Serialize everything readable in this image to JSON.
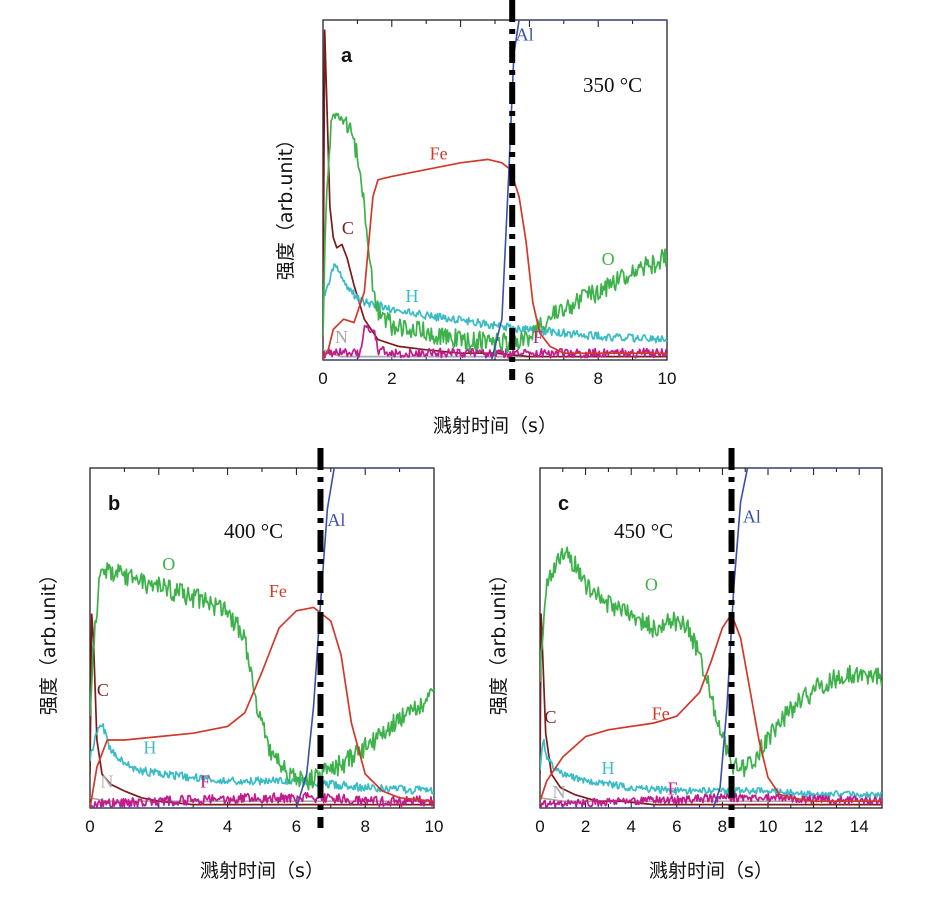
{
  "chart_data": [
    {
      "type": "line",
      "panel": "a",
      "annotation": "350 °C",
      "xlabel": "溅射时间（s）",
      "ylabel": "强度（arb.unit）",
      "xlim": [
        0,
        10
      ],
      "ylim": [
        0,
        1
      ],
      "xticks": [
        0,
        2,
        4,
        6,
        8,
        10
      ],
      "xtick_labels": [
        "0",
        "2",
        "4",
        "6",
        "8",
        "10"
      ],
      "interface_x": 5.5,
      "series": [
        {
          "name": "Al",
          "color": "#3a4fa8",
          "x": [
            0,
            4.9,
            5.2,
            5.4,
            5.55,
            5.7,
            10
          ],
          "y": [
            0,
            0,
            0.12,
            0.55,
            0.9,
            1.0,
            1.0
          ]
        },
        {
          "name": "Fe",
          "color": "#d1392b",
          "x": [
            0,
            0.15,
            0.3,
            0.6,
            0.9,
            1.2,
            1.45,
            1.6,
            2.0,
            3.0,
            4.0,
            4.8,
            5.2,
            5.45,
            5.7,
            5.9,
            6.1,
            6.3,
            6.6,
            7.0,
            8.0,
            10
          ],
          "y": [
            0,
            0.03,
            0.09,
            0.12,
            0.11,
            0.2,
            0.48,
            0.53,
            0.54,
            0.56,
            0.58,
            0.59,
            0.58,
            0.56,
            0.48,
            0.35,
            0.17,
            0.08,
            0.04,
            0.02,
            0.02,
            0.02
          ]
        },
        {
          "name": "O",
          "color": "#3db24a",
          "x": [
            0,
            0.1,
            0.25,
            0.45,
            0.8,
            1.0,
            1.2,
            1.4,
            1.6,
            2.0,
            3.0,
            4.0,
            5.0,
            5.5,
            6.0,
            6.5,
            7.0,
            8.0,
            9.0,
            10
          ],
          "y": [
            0.1,
            0.48,
            0.72,
            0.74,
            0.67,
            0.6,
            0.45,
            0.25,
            0.14,
            0.1,
            0.08,
            0.06,
            0.05,
            0.05,
            0.07,
            0.12,
            0.15,
            0.2,
            0.26,
            0.3
          ],
          "noise": 0.03
        },
        {
          "name": "H",
          "color": "#3bbcc5",
          "x": [
            0,
            0.15,
            0.35,
            0.5,
            0.8,
            1.2,
            2.0,
            3.0,
            4.0,
            5.0,
            6.0,
            7.0,
            8.0,
            10
          ],
          "y": [
            0.18,
            0.22,
            0.28,
            0.25,
            0.2,
            0.17,
            0.15,
            0.13,
            0.12,
            0.1,
            0.09,
            0.08,
            0.07,
            0.06
          ],
          "noise": 0.012
        },
        {
          "name": "C",
          "color": "#7a1c1c",
          "x": [
            0,
            0.05,
            0.1,
            0.2,
            0.3,
            0.4,
            0.55,
            0.7,
            0.9,
            1.2,
            1.6,
            2.2,
            3.0,
            4.0,
            5.0,
            6.0,
            10
          ],
          "y": [
            0.1,
            0.97,
            0.8,
            0.45,
            0.36,
            0.33,
            0.34,
            0.3,
            0.22,
            0.12,
            0.06,
            0.04,
            0.03,
            0.02,
            0.02,
            0.01,
            0.01
          ]
        },
        {
          "name": "F",
          "color": "#c21c8c",
          "x": [
            0,
            1.1,
            1.2,
            1.5,
            1.6,
            2.0,
            10
          ],
          "y": [
            0.02,
            0.02,
            0.09,
            0.09,
            0.03,
            0.02,
            0.02
          ],
          "noise": 0.014
        },
        {
          "name": "N",
          "color": "#a8a8a8",
          "x": [
            0,
            0.5,
            10
          ],
          "y": [
            0.03,
            0.01,
            0.01
          ]
        }
      ],
      "series_labels": [
        {
          "name": "Al",
          "x": 5.6,
          "y": 0.94
        },
        {
          "name": "Fe",
          "x": 3.1,
          "y": 0.59
        },
        {
          "name": "O",
          "x": 8.1,
          "y": 0.28
        },
        {
          "name": "H",
          "x": 2.4,
          "y": 0.17
        },
        {
          "name": "C",
          "x": 0.55,
          "y": 0.37
        },
        {
          "name": "F",
          "x": 6.1,
          "y": 0.05
        },
        {
          "name": "N",
          "x": 0.35,
          "y": 0.05
        }
      ]
    },
    {
      "type": "line",
      "panel": "b",
      "annotation": "400 °C",
      "xlabel": "溅射时间（s）",
      "ylabel": "强度（arb.unit）",
      "xlim": [
        0,
        10
      ],
      "ylim": [
        0,
        1
      ],
      "xticks": [
        0,
        2,
        4,
        6,
        8,
        10
      ],
      "xtick_labels": [
        "0",
        "2",
        "4",
        "6",
        "8",
        "10"
      ],
      "interface_x": 6.7,
      "series": [
        {
          "name": "Al",
          "color": "#3a4fa8",
          "x": [
            0,
            6.0,
            6.3,
            6.5,
            6.7,
            6.9,
            7.1,
            10
          ],
          "y": [
            0,
            0,
            0.1,
            0.3,
            0.6,
            0.88,
            1.0,
            1.0
          ]
        },
        {
          "name": "Fe",
          "color": "#d1392b",
          "x": [
            0,
            0.2,
            0.5,
            1.0,
            2.0,
            3.0,
            4.0,
            4.5,
            5.0,
            5.5,
            6.0,
            6.5,
            7.0,
            7.3,
            7.6,
            8.0,
            8.5,
            9.0,
            10
          ],
          "y": [
            0,
            0.12,
            0.2,
            0.2,
            0.21,
            0.22,
            0.24,
            0.28,
            0.4,
            0.53,
            0.58,
            0.59,
            0.55,
            0.45,
            0.25,
            0.1,
            0.05,
            0.03,
            0.02
          ]
        },
        {
          "name": "O",
          "color": "#3db24a",
          "x": [
            0,
            0.15,
            0.3,
            0.5,
            1.0,
            2.0,
            3.0,
            4.0,
            4.5,
            4.8,
            5.2,
            5.8,
            6.3,
            6.8,
            7.5,
            8.5,
            9.5,
            10
          ],
          "y": [
            0.3,
            0.55,
            0.68,
            0.7,
            0.68,
            0.65,
            0.62,
            0.58,
            0.5,
            0.33,
            0.17,
            0.1,
            0.08,
            0.1,
            0.14,
            0.22,
            0.3,
            0.33
          ],
          "noise": 0.03
        },
        {
          "name": "H",
          "color": "#3bbcc5",
          "x": [
            0,
            0.2,
            0.35,
            0.6,
            1.0,
            1.5,
            2.0,
            3.0,
            4.0,
            5.0,
            6.0,
            7.0,
            8.0,
            10
          ],
          "y": [
            0.15,
            0.22,
            0.25,
            0.17,
            0.13,
            0.11,
            0.1,
            0.09,
            0.08,
            0.08,
            0.08,
            0.07,
            0.06,
            0.05
          ],
          "noise": 0.012
        },
        {
          "name": "C",
          "color": "#7a1c1c",
          "x": [
            0,
            0.05,
            0.1,
            0.2,
            0.35,
            0.6,
            1.0,
            1.5,
            2.0,
            3.0,
            4.0,
            6.0,
            10
          ],
          "y": [
            0.1,
            0.57,
            0.5,
            0.2,
            0.1,
            0.07,
            0.05,
            0.03,
            0.02,
            0.01,
            0.01,
            0.01,
            0.01
          ]
        },
        {
          "name": "F",
          "color": "#c21c8c",
          "x": [
            0,
            2.0,
            5.0,
            6.7,
            8.0,
            10
          ],
          "y": [
            0.01,
            0.02,
            0.03,
            0.03,
            0.02,
            0.02
          ],
          "noise": 0.015
        },
        {
          "name": "N",
          "color": "#a8a8a8",
          "x": [
            0,
            0.5,
            10
          ],
          "y": [
            0.03,
            0.02,
            0.02
          ]
        }
      ],
      "series_labels": [
        {
          "name": "Al",
          "x": 6.9,
          "y": 0.83
        },
        {
          "name": "Fe",
          "x": 5.2,
          "y": 0.62
        },
        {
          "name": "O",
          "x": 2.1,
          "y": 0.7
        },
        {
          "name": "H",
          "x": 1.55,
          "y": 0.16
        },
        {
          "name": "C",
          "x": 0.2,
          "y": 0.33
        },
        {
          "name": "F",
          "x": 3.2,
          "y": 0.06
        },
        {
          "name": "N",
          "x": 0.3,
          "y": 0.06
        }
      ]
    },
    {
      "type": "line",
      "panel": "c",
      "annotation": "450 °C",
      "xlabel": "溅射时间（s）",
      "ylabel": "强度（arb.unit）",
      "xlim": [
        0,
        15
      ],
      "ylim": [
        0,
        1
      ],
      "xticks": [
        0,
        2,
        4,
        6,
        8,
        10,
        12,
        14
      ],
      "xtick_labels": [
        "0",
        "2",
        "4",
        "6",
        "8",
        "10",
        "12",
        "14"
      ],
      "interface_x": 8.4,
      "series": [
        {
          "name": "Al",
          "color": "#3a4fa8",
          "x": [
            0,
            7.6,
            7.9,
            8.2,
            8.5,
            8.8,
            9.1,
            10.0,
            15
          ],
          "y": [
            0,
            0,
            0.06,
            0.3,
            0.65,
            0.9,
            1.0,
            1.0,
            1.0
          ]
        },
        {
          "name": "Fe",
          "color": "#d1392b",
          "x": [
            0,
            0.3,
            1.0,
            2.0,
            3.0,
            4.0,
            5.0,
            6.0,
            7.0,
            7.5,
            8.0,
            8.4,
            8.8,
            9.2,
            9.6,
            10.0,
            10.5,
            11.0,
            12.0,
            15
          ],
          "y": [
            0.02,
            0.08,
            0.15,
            0.21,
            0.23,
            0.24,
            0.25,
            0.27,
            0.34,
            0.43,
            0.53,
            0.57,
            0.5,
            0.35,
            0.2,
            0.09,
            0.04,
            0.03,
            0.02,
            0.02
          ]
        },
        {
          "name": "O",
          "color": "#3db24a",
          "x": [
            0,
            0.3,
            0.7,
            1.2,
            2.0,
            3.0,
            4.0,
            5.0,
            5.8,
            6.5,
            7.0,
            7.5,
            8.0,
            8.5,
            9.0,
            9.5,
            10.5,
            11.5,
            12.5,
            13.5,
            15
          ],
          "y": [
            0.4,
            0.65,
            0.73,
            0.75,
            0.66,
            0.6,
            0.57,
            0.53,
            0.55,
            0.53,
            0.45,
            0.33,
            0.2,
            0.12,
            0.11,
            0.15,
            0.25,
            0.32,
            0.37,
            0.39,
            0.38
          ],
          "noise": 0.03
        },
        {
          "name": "H",
          "color": "#3bbcc5",
          "x": [
            0,
            0.15,
            0.3,
            0.6,
            1.0,
            2.0,
            3.0,
            4.0,
            6.0,
            8.0,
            10.0,
            12.0,
            15
          ],
          "y": [
            0.12,
            0.2,
            0.15,
            0.12,
            0.1,
            0.08,
            0.07,
            0.06,
            0.05,
            0.05,
            0.05,
            0.04,
            0.04
          ],
          "noise": 0.01
        },
        {
          "name": "C",
          "color": "#7a1c1c",
          "x": [
            0,
            0.05,
            0.12,
            0.25,
            0.5,
            0.9,
            1.5,
            2.5,
            3.5,
            5.0,
            15
          ],
          "y": [
            0.1,
            0.57,
            0.45,
            0.22,
            0.1,
            0.06,
            0.04,
            0.02,
            0.02,
            0.01,
            0.01
          ]
        },
        {
          "name": "F",
          "color": "#c21c8c",
          "x": [
            0,
            4.0,
            8.0,
            10.0,
            15
          ],
          "y": [
            0.01,
            0.02,
            0.03,
            0.03,
            0.02
          ],
          "noise": 0.012
        },
        {
          "name": "N",
          "color": "#a8a8a8",
          "x": [
            0,
            1.0,
            15
          ],
          "y": [
            0.03,
            0.02,
            0.02
          ]
        }
      ],
      "series_labels": [
        {
          "name": "Al",
          "x": 8.9,
          "y": 0.84
        },
        {
          "name": "Fe",
          "x": 4.9,
          "y": 0.26
        },
        {
          "name": "O",
          "x": 4.6,
          "y": 0.64
        },
        {
          "name": "H",
          "x": 2.7,
          "y": 0.1
        },
        {
          "name": "C",
          "x": 0.2,
          "y": 0.25
        },
        {
          "name": "F",
          "x": 5.6,
          "y": 0.04
        },
        {
          "name": "N",
          "x": 0.55,
          "y": 0.03
        }
      ]
    }
  ]
}
